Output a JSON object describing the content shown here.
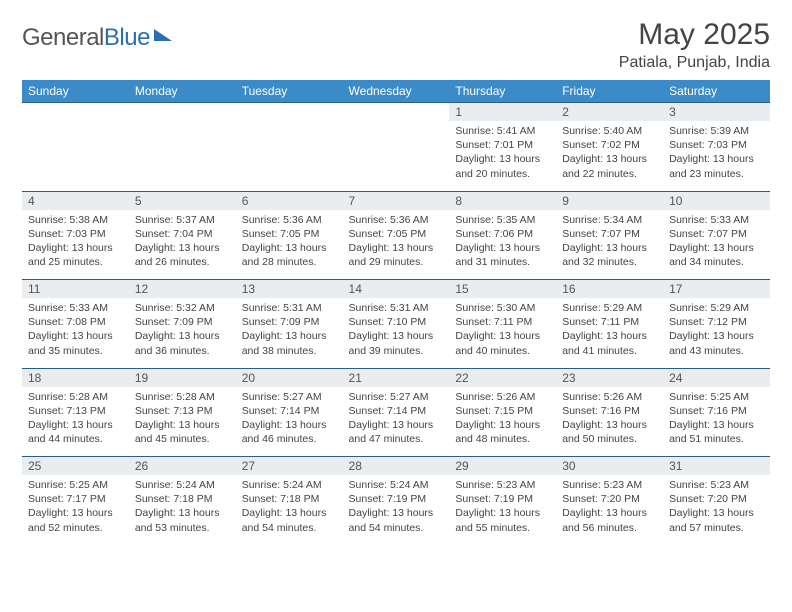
{
  "logo": {
    "general": "General",
    "blue": "Blue"
  },
  "title": "May 2025",
  "location": "Patiala, Punjab, India",
  "colors": {
    "header_bg": "#3b8bc9",
    "header_text": "#ffffff",
    "daynum_bg": "#e9edf0",
    "border": "#2b5d8a",
    "text": "#444444"
  },
  "day_headers": [
    "Sunday",
    "Monday",
    "Tuesday",
    "Wednesday",
    "Thursday",
    "Friday",
    "Saturday"
  ],
  "weeks": [
    [
      null,
      null,
      null,
      null,
      {
        "n": "1",
        "sr": "5:41 AM",
        "ss": "7:01 PM",
        "dl": "13 hours and 20 minutes."
      },
      {
        "n": "2",
        "sr": "5:40 AM",
        "ss": "7:02 PM",
        "dl": "13 hours and 22 minutes."
      },
      {
        "n": "3",
        "sr": "5:39 AM",
        "ss": "7:03 PM",
        "dl": "13 hours and 23 minutes."
      }
    ],
    [
      {
        "n": "4",
        "sr": "5:38 AM",
        "ss": "7:03 PM",
        "dl": "13 hours and 25 minutes."
      },
      {
        "n": "5",
        "sr": "5:37 AM",
        "ss": "7:04 PM",
        "dl": "13 hours and 26 minutes."
      },
      {
        "n": "6",
        "sr": "5:36 AM",
        "ss": "7:05 PM",
        "dl": "13 hours and 28 minutes."
      },
      {
        "n": "7",
        "sr": "5:36 AM",
        "ss": "7:05 PM",
        "dl": "13 hours and 29 minutes."
      },
      {
        "n": "8",
        "sr": "5:35 AM",
        "ss": "7:06 PM",
        "dl": "13 hours and 31 minutes."
      },
      {
        "n": "9",
        "sr": "5:34 AM",
        "ss": "7:07 PM",
        "dl": "13 hours and 32 minutes."
      },
      {
        "n": "10",
        "sr": "5:33 AM",
        "ss": "7:07 PM",
        "dl": "13 hours and 34 minutes."
      }
    ],
    [
      {
        "n": "11",
        "sr": "5:33 AM",
        "ss": "7:08 PM",
        "dl": "13 hours and 35 minutes."
      },
      {
        "n": "12",
        "sr": "5:32 AM",
        "ss": "7:09 PM",
        "dl": "13 hours and 36 minutes."
      },
      {
        "n": "13",
        "sr": "5:31 AM",
        "ss": "7:09 PM",
        "dl": "13 hours and 38 minutes."
      },
      {
        "n": "14",
        "sr": "5:31 AM",
        "ss": "7:10 PM",
        "dl": "13 hours and 39 minutes."
      },
      {
        "n": "15",
        "sr": "5:30 AM",
        "ss": "7:11 PM",
        "dl": "13 hours and 40 minutes."
      },
      {
        "n": "16",
        "sr": "5:29 AM",
        "ss": "7:11 PM",
        "dl": "13 hours and 41 minutes."
      },
      {
        "n": "17",
        "sr": "5:29 AM",
        "ss": "7:12 PM",
        "dl": "13 hours and 43 minutes."
      }
    ],
    [
      {
        "n": "18",
        "sr": "5:28 AM",
        "ss": "7:13 PM",
        "dl": "13 hours and 44 minutes."
      },
      {
        "n": "19",
        "sr": "5:28 AM",
        "ss": "7:13 PM",
        "dl": "13 hours and 45 minutes."
      },
      {
        "n": "20",
        "sr": "5:27 AM",
        "ss": "7:14 PM",
        "dl": "13 hours and 46 minutes."
      },
      {
        "n": "21",
        "sr": "5:27 AM",
        "ss": "7:14 PM",
        "dl": "13 hours and 47 minutes."
      },
      {
        "n": "22",
        "sr": "5:26 AM",
        "ss": "7:15 PM",
        "dl": "13 hours and 48 minutes."
      },
      {
        "n": "23",
        "sr": "5:26 AM",
        "ss": "7:16 PM",
        "dl": "13 hours and 50 minutes."
      },
      {
        "n": "24",
        "sr": "5:25 AM",
        "ss": "7:16 PM",
        "dl": "13 hours and 51 minutes."
      }
    ],
    [
      {
        "n": "25",
        "sr": "5:25 AM",
        "ss": "7:17 PM",
        "dl": "13 hours and 52 minutes."
      },
      {
        "n": "26",
        "sr": "5:24 AM",
        "ss": "7:18 PM",
        "dl": "13 hours and 53 minutes."
      },
      {
        "n": "27",
        "sr": "5:24 AM",
        "ss": "7:18 PM",
        "dl": "13 hours and 54 minutes."
      },
      {
        "n": "28",
        "sr": "5:24 AM",
        "ss": "7:19 PM",
        "dl": "13 hours and 54 minutes."
      },
      {
        "n": "29",
        "sr": "5:23 AM",
        "ss": "7:19 PM",
        "dl": "13 hours and 55 minutes."
      },
      {
        "n": "30",
        "sr": "5:23 AM",
        "ss": "7:20 PM",
        "dl": "13 hours and 56 minutes."
      },
      {
        "n": "31",
        "sr": "5:23 AM",
        "ss": "7:20 PM",
        "dl": "13 hours and 57 minutes."
      }
    ]
  ],
  "labels": {
    "sunrise": "Sunrise: ",
    "sunset": "Sunset: ",
    "daylight": "Daylight: "
  }
}
